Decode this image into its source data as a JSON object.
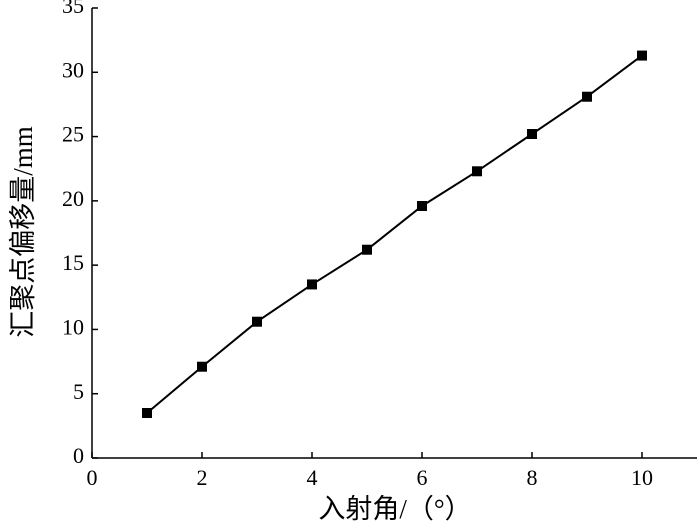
{
  "chart_data": {
    "type": "line",
    "x_label": "入射角/（°）",
    "y_label": "汇聚点偏移量/mm",
    "x": [
      1,
      2,
      3,
      4,
      5,
      6,
      7,
      8,
      9,
      10
    ],
    "series": [
      {
        "color": "#000000",
        "values": [
          3.5,
          7.1,
          10.6,
          13.5,
          16.2,
          19.6,
          22.3,
          25.2,
          28.1,
          31.3
        ]
      }
    ],
    "xlim": [
      0,
      11
    ],
    "xticks": [
      0,
      2,
      4,
      6,
      8,
      10
    ],
    "ylim": [
      0,
      35
    ],
    "yticks": [
      0,
      5,
      10,
      15,
      20,
      25,
      30,
      35
    ],
    "grid": false
  }
}
